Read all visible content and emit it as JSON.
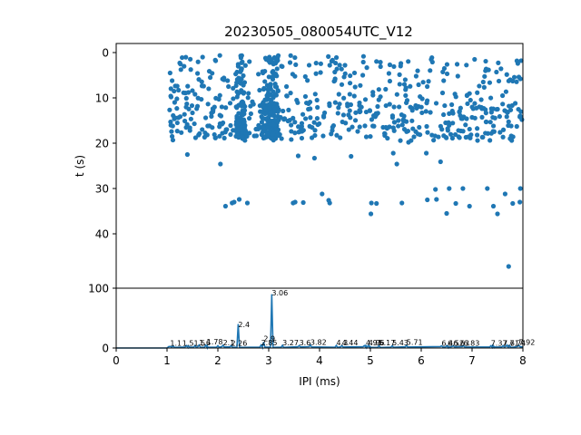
{
  "chart_data": [
    {
      "type": "scatter",
      "title": "20230505_080054UTC_V12",
      "xlabel": "",
      "ylabel": "t (s)",
      "xlim": [
        0,
        8
      ],
      "ylim": [
        52,
        -2
      ],
      "y_inverted": true,
      "yticks": [
        0,
        10,
        20,
        30,
        40
      ],
      "marker_color": "#1f77b4",
      "points": [
        [
          1.06,
          4.5
        ],
        [
          1.1,
          6.2
        ],
        [
          1.08,
          9.8
        ],
        [
          1.12,
          13.9
        ],
        [
          1.07,
          15.3
        ],
        [
          1.1,
          18.5
        ],
        [
          1.15,
          11.0
        ],
        [
          1.2,
          7.4
        ],
        [
          1.25,
          2.3
        ],
        [
          1.35,
          15.1
        ],
        [
          1.38,
          10.1
        ],
        [
          1.42,
          8.8
        ],
        [
          1.4,
          22.5
        ],
        [
          1.45,
          16.6
        ],
        [
          1.5,
          13.3
        ],
        [
          1.55,
          9.2
        ],
        [
          1.6,
          4.6
        ],
        [
          1.62,
          18.2
        ],
        [
          1.7,
          1.0
        ],
        [
          1.72,
          7.4
        ],
        [
          1.76,
          14.4
        ],
        [
          1.8,
          16.2
        ],
        [
          1.85,
          5.5
        ],
        [
          1.9,
          12.4
        ],
        [
          1.95,
          18.8
        ],
        [
          2.02,
          10.3
        ],
        [
          2.05,
          24.6
        ],
        [
          2.1,
          15.5
        ],
        [
          2.12,
          6.0
        ],
        [
          2.15,
          33.9
        ],
        [
          2.25,
          16.1
        ],
        [
          2.28,
          33.2
        ],
        [
          2.32,
          33.0
        ],
        [
          2.38,
          9.8
        ],
        [
          2.42,
          32.4
        ],
        [
          2.45,
          14.4
        ],
        [
          2.5,
          5.1
        ],
        [
          2.55,
          18.2
        ],
        [
          2.58,
          33.2
        ],
        [
          2.62,
          2.0
        ],
        [
          2.65,
          13.5
        ],
        [
          2.7,
          11.4
        ],
        [
          2.75,
          16.9
        ],
        [
          2.82,
          8.3
        ],
        [
          2.88,
          4.2
        ],
        [
          2.9,
          16.8
        ],
        [
          2.95,
          1.5
        ],
        [
          2.99,
          10.2
        ],
        [
          3.02,
          15.5
        ],
        [
          3.04,
          12.1
        ],
        [
          3.06,
          13.8
        ],
        [
          3.08,
          5.9
        ],
        [
          3.1,
          16.5
        ],
        [
          3.15,
          9.4
        ],
        [
          3.2,
          18.3
        ],
        [
          3.25,
          3.0
        ],
        [
          3.28,
          12.9
        ],
        [
          3.35,
          7.5
        ],
        [
          3.38,
          15.1
        ],
        [
          3.42,
          2.2
        ],
        [
          3.48,
          33.2
        ],
        [
          3.52,
          33.0
        ],
        [
          3.55,
          10.5
        ],
        [
          3.58,
          22.8
        ],
        [
          3.65,
          16.3
        ],
        [
          3.68,
          33.1
        ],
        [
          3.72,
          5.3
        ],
        [
          3.78,
          12.5
        ],
        [
          3.85,
          18.8
        ],
        [
          3.9,
          23.3
        ],
        [
          3.95,
          10.5
        ],
        [
          4.02,
          4.4
        ],
        [
          4.05,
          31.2
        ],
        [
          4.1,
          13.3
        ],
        [
          4.18,
          32.6
        ],
        [
          4.2,
          33.2
        ],
        [
          4.25,
          17.2
        ],
        [
          4.3,
          4.3
        ],
        [
          4.38,
          9.2
        ],
        [
          4.45,
          15.3
        ],
        [
          4.5,
          2.8
        ],
        [
          4.55,
          11.8
        ],
        [
          4.62,
          22.9
        ],
        [
          4.7,
          7.6
        ],
        [
          4.75,
          17.4
        ],
        [
          4.8,
          13.0
        ],
        [
          4.85,
          5.0
        ],
        [
          4.92,
          18.6
        ],
        [
          5.01,
          35.6
        ],
        [
          5.02,
          33.2
        ],
        [
          5.05,
          9.4
        ],
        [
          5.1,
          13.9
        ],
        [
          5.12,
          33.3
        ],
        [
          5.2,
          3.1
        ],
        [
          5.25,
          16.5
        ],
        [
          5.3,
          8.1
        ],
        [
          5.38,
          11.4
        ],
        [
          5.45,
          22.2
        ],
        [
          5.52,
          24.6
        ],
        [
          5.55,
          15.0
        ],
        [
          5.6,
          2.4
        ],
        [
          5.62,
          33.2
        ],
        [
          5.7,
          7.8
        ],
        [
          5.75,
          19.8
        ],
        [
          5.82,
          12.3
        ],
        [
          5.9,
          5.2
        ],
        [
          5.96,
          16.5
        ],
        [
          6.02,
          10.2
        ],
        [
          6.1,
          22.2
        ],
        [
          6.12,
          32.5
        ],
        [
          6.18,
          13.2
        ],
        [
          6.22,
          2.1
        ],
        [
          6.28,
          30.2
        ],
        [
          6.3,
          32.4
        ],
        [
          6.38,
          24.1
        ],
        [
          6.42,
          8.9
        ],
        [
          6.48,
          15.5
        ],
        [
          6.5,
          35.5
        ],
        [
          6.55,
          30.0
        ],
        [
          6.6,
          11.5
        ],
        [
          6.68,
          33.3
        ],
        [
          6.72,
          5.2
        ],
        [
          6.78,
          17.3
        ],
        [
          6.82,
          30.0
        ],
        [
          6.9,
          9.5
        ],
        [
          6.95,
          33.9
        ],
        [
          7.0,
          14.3
        ],
        [
          7.05,
          1.5
        ],
        [
          7.1,
          18.2
        ],
        [
          7.18,
          10.4
        ],
        [
          7.22,
          6.5
        ],
        [
          7.28,
          15.3
        ],
        [
          7.3,
          30.0
        ],
        [
          7.38,
          12.4
        ],
        [
          7.42,
          33.9
        ],
        [
          7.48,
          4.3
        ],
        [
          7.5,
          35.6
        ],
        [
          7.55,
          17.6
        ],
        [
          7.6,
          9.5
        ],
        [
          7.65,
          31.2
        ],
        [
          7.7,
          13.2
        ],
        [
          7.72,
          47.2
        ],
        [
          7.75,
          6.0
        ],
        [
          7.78,
          19.4
        ],
        [
          7.8,
          33.3
        ],
        [
          7.85,
          11.2
        ],
        [
          7.88,
          16.3
        ],
        [
          7.92,
          5.4
        ],
        [
          7.95,
          30.0
        ],
        [
          7.98,
          14.8
        ],
        [
          7.94,
          33.0
        ],
        [
          7.9,
          2.4
        ]
      ],
      "point_bands": [
        {
          "xmin": 1.05,
          "xmax": 7.98,
          "ymin": 0.5,
          "ymax": 19.5,
          "count": 720
        }
      ]
    },
    {
      "type": "area",
      "title": "",
      "xlabel": "IPI (ms)",
      "ylabel": "",
      "xlim": [
        0,
        8
      ],
      "ylim": [
        0,
        100
      ],
      "xticks": [
        0,
        1,
        2,
        3,
        4,
        5,
        6,
        7,
        8
      ],
      "yticks": [
        0,
        100
      ],
      "line_color": "#1f77b4",
      "peaks": [
        {
          "x": 1.06,
          "y": 2.6
        },
        {
          "x": 1.12,
          "y": 3.4
        },
        {
          "x": 1.38,
          "y": 4.0
        },
        {
          "x": 1.42,
          "y": 3.6
        },
        {
          "x": 1.55,
          "y": 4.2
        },
        {
          "x": 1.63,
          "y": 5.0
        },
        {
          "x": 1.76,
          "y": 4.6
        },
        {
          "x": 1.78,
          "y": 5.2
        },
        {
          "x": 2.0,
          "y": 3.8
        },
        {
          "x": 2.1,
          "y": 4.4
        },
        {
          "x": 2.26,
          "y": 4.1
        },
        {
          "x": 2.4,
          "y": 40
        },
        {
          "x": 2.85,
          "y": 5.0
        },
        {
          "x": 2.9,
          "y": 10
        },
        {
          "x": 3.06,
          "y": 90
        },
        {
          "x": 3.27,
          "y": 4.5
        },
        {
          "x": 3.6,
          "y": 4.0
        },
        {
          "x": 3.82,
          "y": 4.8
        },
        {
          "x": 4.33,
          "y": 4.3
        },
        {
          "x": 4.44,
          "y": 4.0
        },
        {
          "x": 4.88,
          "y": 4.0
        },
        {
          "x": 4.91,
          "y": 4.2
        },
        {
          "x": 4.96,
          "y": 4.1
        },
        {
          "x": 4.98,
          "y": 3.8
        },
        {
          "x": 5.17,
          "y": 4.0
        },
        {
          "x": 5.43,
          "y": 3.8
        },
        {
          "x": 5.71,
          "y": 4.4
        },
        {
          "x": 6.4,
          "y": 3.6
        },
        {
          "x": 6.5,
          "y": 3.9
        },
        {
          "x": 6.52,
          "y": 4.0
        },
        {
          "x": 6.63,
          "y": 3.9
        },
        {
          "x": 6.83,
          "y": 4.0
        },
        {
          "x": 7.37,
          "y": 3.7
        },
        {
          "x": 7.4,
          "y": 3.6
        },
        {
          "x": 7.42,
          "y": 3.5
        },
        {
          "x": 7.61,
          "y": 4.0
        },
        {
          "x": 7.68,
          "y": 4.2
        },
        {
          "x": 7.7,
          "y": 3.9
        },
        {
          "x": 7.74,
          "y": 4.1
        },
        {
          "x": 7.92,
          "y": 4.6
        }
      ],
      "annotations": [
        {
          "x": 1.06,
          "y": 2.6,
          "label": "1.1"
        },
        {
          "x": 1.3,
          "y": 2.6,
          "label": "1.51.5"
        },
        {
          "x": 1.63,
          "y": 3.0,
          "label": "1.6"
        },
        {
          "x": 1.78,
          "y": 4.6,
          "label": "1.78"
        },
        {
          "x": 2.1,
          "y": 3.0,
          "label": "2.1"
        },
        {
          "x": 2.26,
          "y": 2.6,
          "label": "2.26"
        },
        {
          "x": 2.4,
          "y": 33,
          "label": "2.4"
        },
        {
          "x": 2.85,
          "y": 3.0,
          "label": "2.85"
        },
        {
          "x": 2.9,
          "y": 10,
          "label": "2.9"
        },
        {
          "x": 3.06,
          "y": 86,
          "label": "3.06"
        },
        {
          "x": 3.27,
          "y": 3.0,
          "label": "3.27"
        },
        {
          "x": 3.6,
          "y": 3.0,
          "label": "3.6"
        },
        {
          "x": 3.82,
          "y": 4.0,
          "label": "3.82"
        },
        {
          "x": 4.33,
          "y": 3.0,
          "label": "4.3"
        },
        {
          "x": 4.44,
          "y": 3.0,
          "label": "4.44"
        },
        {
          "x": 4.91,
          "y": 3.0,
          "label": "4.91"
        },
        {
          "x": 4.96,
          "y": 3.0,
          "label": "4.96"
        },
        {
          "x": 5.17,
          "y": 3.0,
          "label": "5.17"
        },
        {
          "x": 5.43,
          "y": 3.0,
          "label": "5.43"
        },
        {
          "x": 5.71,
          "y": 4.0,
          "label": "5.71"
        },
        {
          "x": 6.4,
          "y": 2.6,
          "label": "6.4"
        },
        {
          "x": 6.52,
          "y": 2.6,
          "label": "6.52"
        },
        {
          "x": 6.63,
          "y": 2.6,
          "label": "6.63"
        },
        {
          "x": 6.83,
          "y": 2.6,
          "label": "6.83"
        },
        {
          "x": 7.37,
          "y": 2.6,
          "label": "7.37"
        },
        {
          "x": 7.61,
          "y": 2.6,
          "label": "7.61"
        },
        {
          "x": 7.74,
          "y": 2.6,
          "label": "7.74"
        },
        {
          "x": 7.92,
          "y": 4.0,
          "label": "7.92"
        }
      ]
    }
  ]
}
